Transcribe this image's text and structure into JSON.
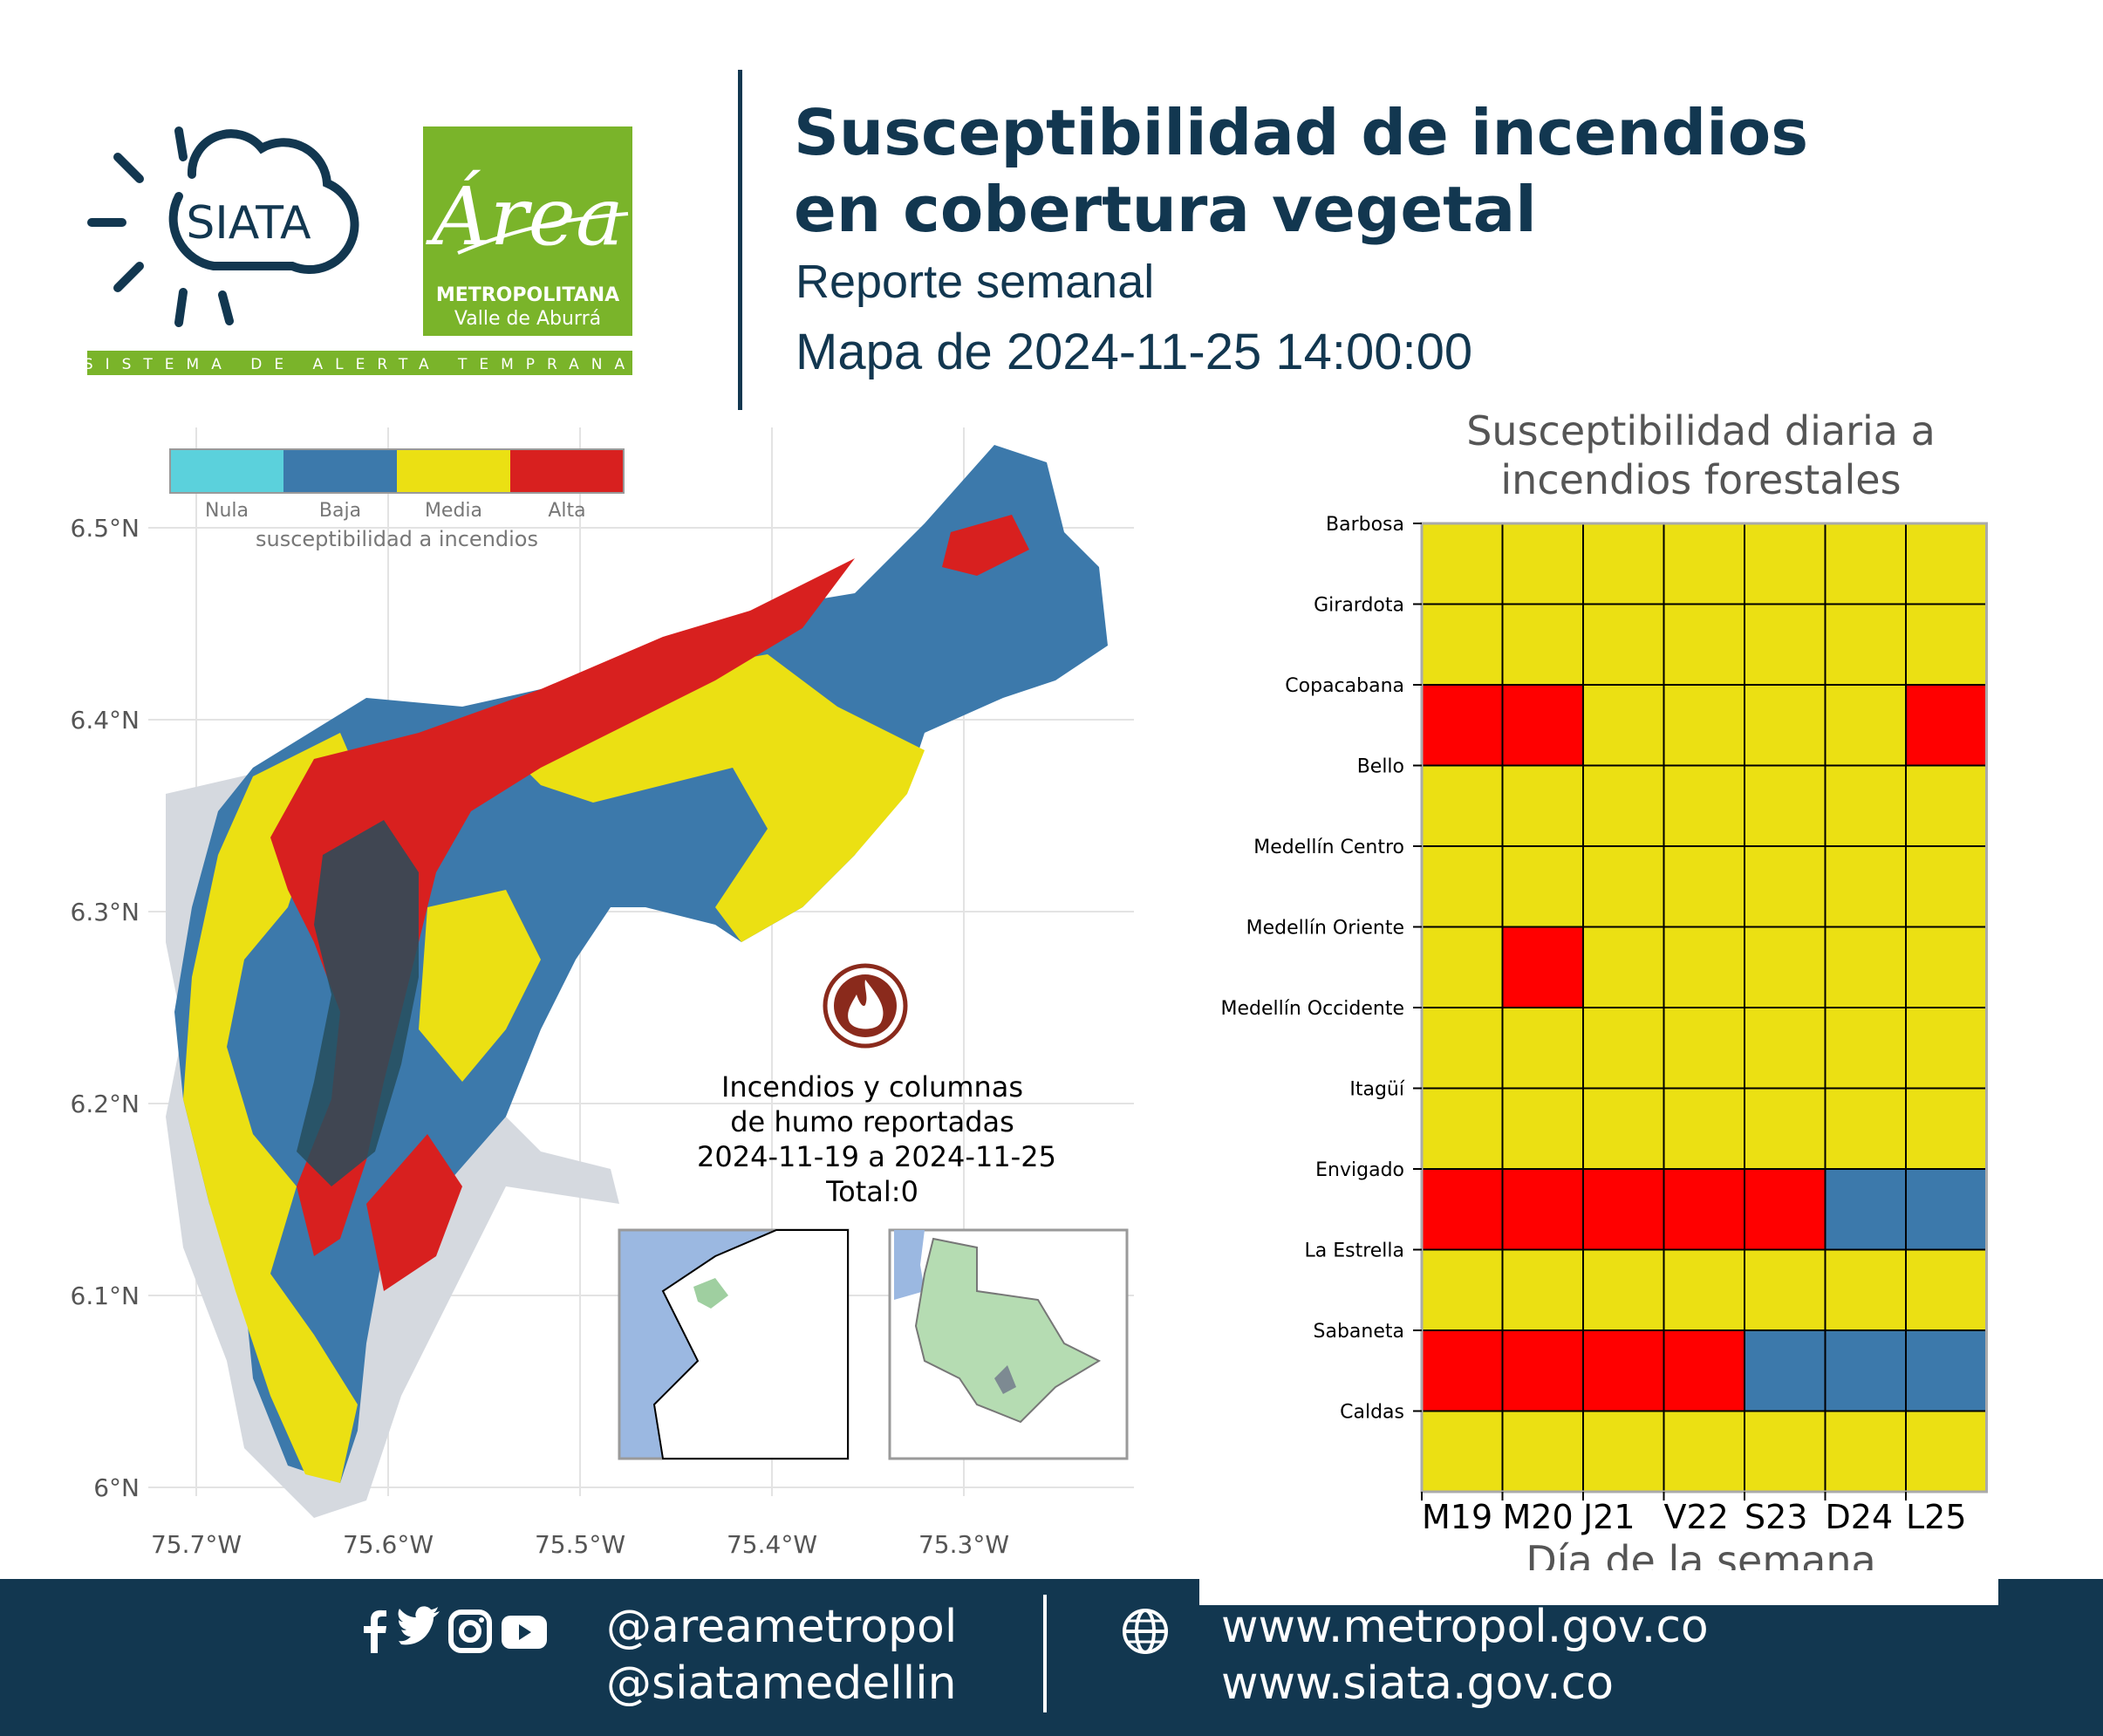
{
  "header": {
    "title_line1": "Susceptibilidad de incendios",
    "title_line2": "en cobertura vegetal",
    "subtitle": "Reporte semanal",
    "map_date": "Mapa de 2024-11-25 14:00:00"
  },
  "logos": {
    "siata_text": "SIATA",
    "area_script": "Área",
    "area_line1": "METROPOLITANA",
    "area_line2": "Valle de Aburrá",
    "band_text": "SISTEMA DE ALERTA TEMPRANA",
    "siata_color": "#123750",
    "area_color": "#7ab42a"
  },
  "map": {
    "legend": {
      "categories": [
        "Nula",
        "Baja",
        "Media",
        "Alta"
      ],
      "colors": [
        "#5bd1dc",
        "#3c79ab",
        "#ebe013",
        "#d8201f"
      ],
      "label": "susceptibilidad a incendios"
    },
    "lat_ticks": [
      "6.5°N",
      "6.4°N",
      "6.3°N",
      "6.2°N",
      "6.1°N",
      "6°N"
    ],
    "lon_ticks": [
      "75.7°W",
      "75.6°W",
      "75.5°W",
      "75.4°W",
      "75.3°W"
    ],
    "fire_icon": "fire-icon",
    "fires_text": [
      "Incendios y columnas",
      "de humo reportadas",
      "2024-11-19 a 2024-11-25",
      "Total:0"
    ]
  },
  "chart_data": {
    "type": "heatmap",
    "title": "Susceptibilidad diaria a incendios forestales",
    "title_lines": [
      "Susceptibilidad diaria a",
      "incendios forestales"
    ],
    "xlabel": "Día de la semana",
    "ylabel": "",
    "columns": [
      "M19",
      "M20",
      "J21",
      "V22",
      "S23",
      "D24",
      "L25"
    ],
    "rows": [
      "Barbosa",
      "Girardota",
      "Copacabana",
      "Bello",
      "Medellín Centro",
      "Medellín Oriente",
      "Medellín Occidente",
      "Itagüí",
      "Envigado",
      "La Estrella",
      "Sabaneta",
      "Caldas"
    ],
    "levels": {
      "Baja": "#3c79ab",
      "Media": "#ebe013",
      "Alta": "#ff0000"
    },
    "values": [
      [
        "Media",
        "Media",
        "Media",
        "Media",
        "Media",
        "Media",
        "Media"
      ],
      [
        "Media",
        "Media",
        "Media",
        "Media",
        "Media",
        "Media",
        "Media"
      ],
      [
        "Alta",
        "Alta",
        "Media",
        "Media",
        "Media",
        "Media",
        "Alta"
      ],
      [
        "Media",
        "Media",
        "Media",
        "Media",
        "Media",
        "Media",
        "Media"
      ],
      [
        "Media",
        "Media",
        "Media",
        "Media",
        "Media",
        "Media",
        "Media"
      ],
      [
        "Media",
        "Alta",
        "Media",
        "Media",
        "Media",
        "Media",
        "Media"
      ],
      [
        "Media",
        "Media",
        "Media",
        "Media",
        "Media",
        "Media",
        "Media"
      ],
      [
        "Media",
        "Media",
        "Media",
        "Media",
        "Media",
        "Media",
        "Media"
      ],
      [
        "Alta",
        "Alta",
        "Alta",
        "Alta",
        "Alta",
        "Baja",
        "Baja"
      ],
      [
        "Media",
        "Media",
        "Media",
        "Media",
        "Media",
        "Media",
        "Media"
      ],
      [
        "Alta",
        "Alta",
        "Alta",
        "Alta",
        "Baja",
        "Baja",
        "Baja"
      ],
      [
        "Media",
        "Media",
        "Media",
        "Media",
        "Media",
        "Media",
        "Media"
      ]
    ]
  },
  "footer": {
    "handle1": "@areametropol",
    "handle2": "@siatamedellin",
    "site1": "www.metropol.gov.co",
    "site2": "www.siata.gov.co",
    "icons": [
      "facebook-icon",
      "twitter-icon",
      "instagram-icon",
      "youtube-icon",
      "globe-icon"
    ]
  }
}
